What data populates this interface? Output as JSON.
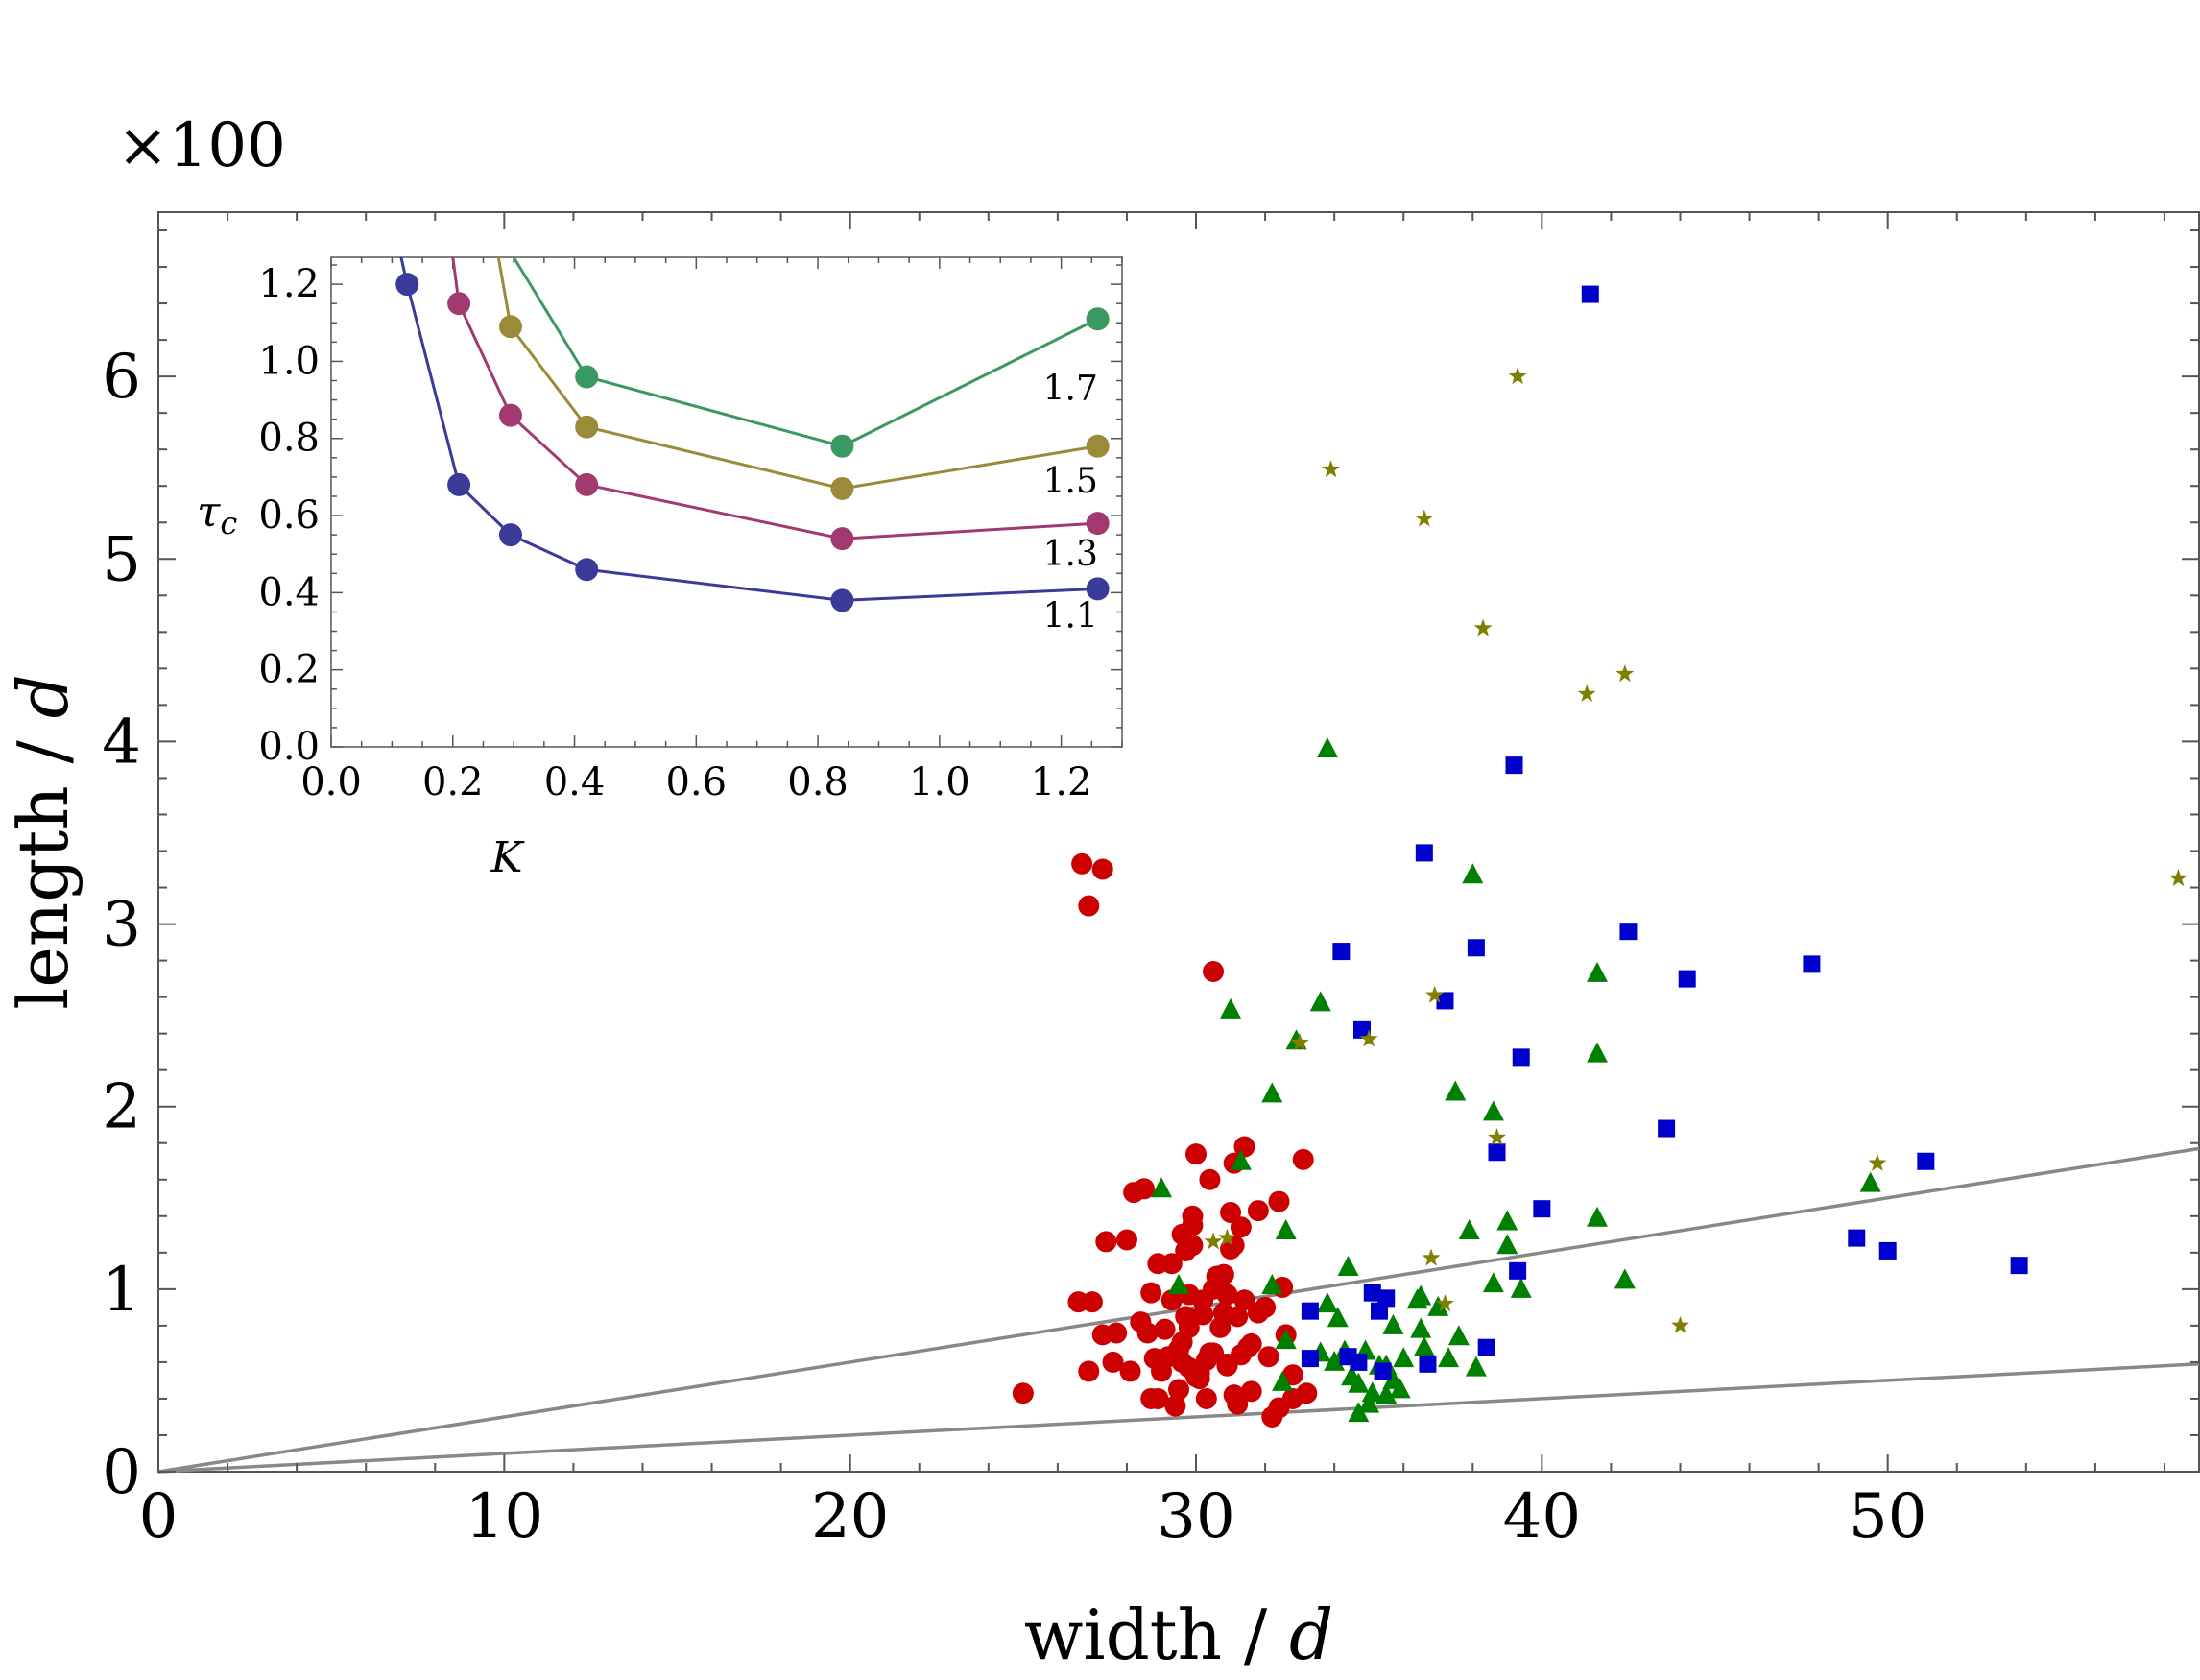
{
  "chart_data": [
    {
      "id": "main",
      "type": "scatter",
      "title": "",
      "multiplier_label": "×100",
      "xlabel_text": "width / ",
      "xlabel_italic": "d",
      "ylabel_text": "length / ",
      "ylabel_italic": "d",
      "xlim": [
        0,
        59
      ],
      "ylim": [
        0,
        6.9
      ],
      "xticks": [
        0,
        10,
        20,
        30,
        40,
        50
      ],
      "yticks": [
        0,
        1,
        2,
        3,
        4,
        5,
        6
      ],
      "xtick_labels": [
        "0",
        "10",
        "20",
        "30",
        "40",
        "50"
      ],
      "ytick_labels": [
        "0",
        "1",
        "2",
        "3",
        "4",
        "5",
        "6"
      ],
      "lines": [
        {
          "name": "upper-reference-line",
          "x": [
            0,
            59
          ],
          "y": [
            0,
            1.77
          ],
          "color": "#888888"
        },
        {
          "name": "lower-reference-line",
          "x": [
            0,
            59
          ],
          "y": [
            0,
            0.59
          ],
          "color": "#888888"
        }
      ],
      "series": [
        {
          "name": "circles",
          "marker": "circle",
          "color": "#cc0000",
          "points": [
            [
              26.7,
              3.33
            ],
            [
              27.3,
              3.3
            ],
            [
              26.9,
              3.1
            ],
            [
              30.5,
              2.74
            ],
            [
              25.0,
              0.43
            ],
            [
              26.6,
              0.93
            ],
            [
              27.0,
              0.93
            ],
            [
              26.9,
              0.55
            ],
            [
              27.3,
              0.75
            ],
            [
              27.6,
              0.6
            ],
            [
              27.7,
              0.76
            ],
            [
              27.4,
              1.26
            ],
            [
              28.0,
              1.27
            ],
            [
              28.2,
              1.53
            ],
            [
              28.5,
              1.55
            ],
            [
              28.6,
              0.76
            ],
            [
              28.7,
              0.98
            ],
            [
              28.8,
              0.62
            ],
            [
              28.9,
              0.4
            ],
            [
              29.0,
              0.55
            ],
            [
              29.1,
              0.78
            ],
            [
              29.3,
              0.94
            ],
            [
              29.5,
              0.67
            ],
            [
              29.6,
              0.6
            ],
            [
              29.8,
              0.97
            ],
            [
              29.9,
              1.24
            ],
            [
              29.3,
              1.14
            ],
            [
              29.6,
              1.3
            ],
            [
              29.9,
              1.4
            ],
            [
              29.5,
              0.45
            ],
            [
              30.0,
              0.52
            ],
            [
              30.2,
              0.86
            ],
            [
              30.3,
              0.61
            ],
            [
              30.5,
              0.65
            ],
            [
              30.6,
              1.07
            ],
            [
              30.8,
              0.87
            ],
            [
              30.9,
              0.59
            ],
            [
              31.0,
              1.22
            ],
            [
              31.1,
              0.42
            ],
            [
              31.2,
              0.37
            ],
            [
              31.3,
              0.64
            ],
            [
              31.4,
              0.94
            ],
            [
              31.6,
              0.44
            ],
            [
              31.8,
              0.87
            ],
            [
              32.0,
              0.9
            ],
            [
              32.2,
              0.3
            ],
            [
              32.4,
              0.35
            ],
            [
              32.6,
              0.75
            ],
            [
              32.8,
              0.4
            ],
            [
              33.2,
              0.43
            ],
            [
              30.0,
              1.74
            ],
            [
              30.4,
              1.6
            ],
            [
              31.4,
              1.78
            ],
            [
              31.1,
              1.69
            ],
            [
              32.4,
              1.48
            ],
            [
              33.1,
              1.71
            ],
            [
              31.0,
              1.42
            ],
            [
              31.3,
              1.34
            ],
            [
              31.8,
              1.43
            ],
            [
              29.9,
              1.35
            ],
            [
              30.9,
              0.97
            ],
            [
              28.9,
              1.14
            ],
            [
              29.7,
              0.85
            ],
            [
              30.1,
              0.51
            ],
            [
              30.5,
              1.0
            ],
            [
              31.5,
              0.68
            ],
            [
              29.2,
              0.63
            ],
            [
              30.4,
              0.65
            ],
            [
              29.8,
              0.79
            ],
            [
              31.2,
              0.85
            ],
            [
              28.4,
              0.82
            ],
            [
              30.7,
              0.79
            ],
            [
              29.6,
              0.71
            ],
            [
              28.1,
              0.55
            ],
            [
              29.4,
              0.36
            ],
            [
              30.3,
              0.4
            ],
            [
              31.6,
              0.7
            ],
            [
              32.1,
              0.63
            ],
            [
              28.7,
              0.4
            ],
            [
              30.1,
              0.54
            ],
            [
              29.7,
              1.21
            ],
            [
              30.8,
              1.08
            ],
            [
              31.1,
              1.24
            ],
            [
              32.5,
              1.01
            ],
            [
              30.9,
              0.58
            ],
            [
              29.8,
              0.57
            ],
            [
              30.2,
              0.94
            ],
            [
              32.8,
              0.53
            ]
          ]
        },
        {
          "name": "triangles",
          "marker": "triangle",
          "color": "#008000",
          "points": [
            [
              33.8,
              3.96
            ],
            [
              38.0,
              3.27
            ],
            [
              31.0,
              2.53
            ],
            [
              33.6,
              2.57
            ],
            [
              32.9,
              2.36
            ],
            [
              41.6,
              2.73
            ],
            [
              41.6,
              2.29
            ],
            [
              32.2,
              2.07
            ],
            [
              37.5,
              2.08
            ],
            [
              38.6,
              1.97
            ],
            [
              31.3,
              1.7
            ],
            [
              32.6,
              1.32
            ],
            [
              29.0,
              1.55
            ],
            [
              37.9,
              1.32
            ],
            [
              39.0,
              1.37
            ],
            [
              39.0,
              1.24
            ],
            [
              41.6,
              1.39
            ],
            [
              49.5,
              1.58
            ],
            [
              42.4,
              1.05
            ],
            [
              39.4,
              1.0
            ],
            [
              38.6,
              1.03
            ],
            [
              36.5,
              0.96
            ],
            [
              35.7,
              0.8
            ],
            [
              32.2,
              1.02
            ],
            [
              29.5,
              1.02
            ],
            [
              34.1,
              0.84
            ],
            [
              33.8,
              0.92
            ],
            [
              34.4,
              1.12
            ],
            [
              32.6,
              0.72
            ],
            [
              33.6,
              0.65
            ],
            [
              34.0,
              0.6
            ],
            [
              34.5,
              0.52
            ],
            [
              34.3,
              0.66
            ],
            [
              34.9,
              0.66
            ],
            [
              35.3,
              0.58
            ],
            [
              35.7,
              0.5
            ],
            [
              35.5,
              0.42
            ],
            [
              35.1,
              0.43
            ],
            [
              35.0,
              0.37
            ],
            [
              34.7,
              0.32
            ],
            [
              34.7,
              0.48
            ],
            [
              35.5,
              0.58
            ],
            [
              36.0,
              0.62
            ],
            [
              36.6,
              0.68
            ],
            [
              36.5,
              0.78
            ],
            [
              37.0,
              0.9
            ],
            [
              37.3,
              0.62
            ],
            [
              37.6,
              0.74
            ],
            [
              38.1,
              0.57
            ],
            [
              32.5,
              0.49
            ],
            [
              36.4,
              0.94
            ],
            [
              35.9,
              0.45
            ]
          ]
        },
        {
          "name": "squares",
          "marker": "square",
          "color": "#0000cc",
          "points": [
            [
              41.4,
              6.45
            ],
            [
              39.2,
              3.87
            ],
            [
              36.6,
              3.39
            ],
            [
              34.2,
              2.85
            ],
            [
              38.1,
              2.87
            ],
            [
              42.5,
              2.96
            ],
            [
              44.2,
              2.7
            ],
            [
              47.8,
              2.78
            ],
            [
              37.2,
              2.58
            ],
            [
              34.8,
              2.42
            ],
            [
              39.4,
              2.27
            ],
            [
              43.6,
              1.88
            ],
            [
              38.7,
              1.75
            ],
            [
              40.0,
              1.44
            ],
            [
              51.1,
              1.7
            ],
            [
              49.1,
              1.28
            ],
            [
              50.0,
              1.21
            ],
            [
              53.8,
              1.13
            ],
            [
              39.3,
              1.1
            ],
            [
              35.3,
              0.88
            ],
            [
              35.1,
              0.98
            ],
            [
              35.5,
              0.95
            ],
            [
              33.3,
              0.88
            ],
            [
              33.3,
              0.62
            ],
            [
              34.4,
              0.63
            ],
            [
              34.7,
              0.6
            ],
            [
              35.4,
              0.55
            ],
            [
              36.7,
              0.59
            ],
            [
              38.4,
              0.68
            ]
          ]
        },
        {
          "name": "stars",
          "marker": "star",
          "color": "#808000",
          "points": [
            [
              39.3,
              6.0
            ],
            [
              33.9,
              5.49
            ],
            [
              36.6,
              5.22
            ],
            [
              38.3,
              4.62
            ],
            [
              41.3,
              4.26
            ],
            [
              42.4,
              4.37
            ],
            [
              58.4,
              3.25
            ],
            [
              36.9,
              2.61
            ],
            [
              35.0,
              2.37
            ],
            [
              33.0,
              2.35
            ],
            [
              38.7,
              1.83
            ],
            [
              49.7,
              1.69
            ],
            [
              30.5,
              1.26
            ],
            [
              30.9,
              1.28
            ],
            [
              36.8,
              1.17
            ],
            [
              37.2,
              0.92
            ],
            [
              44.0,
              0.8
            ]
          ]
        }
      ]
    },
    {
      "id": "inset",
      "type": "line",
      "xlabel": "K",
      "ylabel_main": "τ",
      "ylabel_sub": "c",
      "xlim": [
        0,
        1.3
      ],
      "ylim": [
        0,
        1.27
      ],
      "xticks": [
        0,
        0.2,
        0.4,
        0.6,
        0.8,
        1.0,
        1.2
      ],
      "yticks": [
        0,
        0.2,
        0.4,
        0.6,
        0.8,
        1.0,
        1.2
      ],
      "xtick_labels": [
        "0.0",
        "0.2",
        "0.4",
        "0.6",
        "0.8",
        "1.0",
        "1.2"
      ],
      "ytick_labels": [
        "0.0",
        "0.2",
        "0.4",
        "0.6",
        "0.8",
        "1.0",
        "1.2"
      ],
      "series": [
        {
          "name": "1.1",
          "label": "1.1",
          "color": "#3a3a99",
          "x": [
            0.125,
            0.21,
            0.295,
            0.42,
            0.84,
            1.26
          ],
          "y": [
            1.2,
            0.68,
            0.55,
            0.46,
            0.38,
            0.41
          ],
          "lead_in": [
            [
              0.115,
              1.27
            ]
          ],
          "label_at": [
            1.17,
            0.34
          ]
        },
        {
          "name": "1.3",
          "label": "1.3",
          "color": "#a03a70",
          "x": [
            0.21,
            0.295,
            0.42,
            0.84,
            1.26
          ],
          "y": [
            1.15,
            0.86,
            0.68,
            0.54,
            0.58
          ],
          "lead_in": [
            [
              0.2,
              1.27
            ]
          ],
          "label_at": [
            1.17,
            0.5
          ]
        },
        {
          "name": "1.5",
          "label": "1.5",
          "color": "#9a8a3a",
          "x": [
            0.295,
            0.42,
            0.84,
            1.26
          ],
          "y": [
            1.09,
            0.83,
            0.67,
            0.78
          ],
          "lead_in": [
            [
              0.275,
              1.27
            ]
          ],
          "label_at": [
            1.17,
            0.69
          ]
        },
        {
          "name": "1.7",
          "label": "1.7",
          "color": "#3a9960",
          "x": [
            0.42,
            0.84,
            1.26
          ],
          "y": [
            0.96,
            0.78,
            1.11
          ],
          "lead_in": [
            [
              0.3,
              1.27
            ]
          ],
          "label_at": [
            1.17,
            0.93
          ]
        }
      ]
    }
  ]
}
